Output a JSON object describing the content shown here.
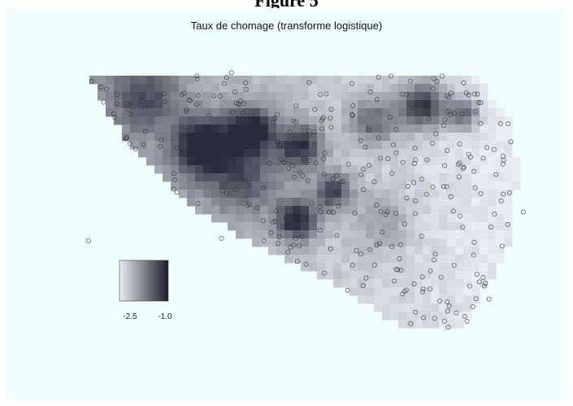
{
  "figure_label": "Figure 5",
  "chart_data": {
    "type": "heatmap",
    "title": "Taux de chomage (transforme logistique)",
    "colorbar": {
      "min": -2.5,
      "max": -1.0,
      "tick_labels": [
        "-2.5",
        "-1.0"
      ],
      "low_color": "#e8ecf4",
      "high_color": "#1c1c28"
    },
    "cell_color_range": [
      "#e9eef6",
      "#2a2c3c"
    ],
    "marker": "circle",
    "background": "#effefe"
  }
}
